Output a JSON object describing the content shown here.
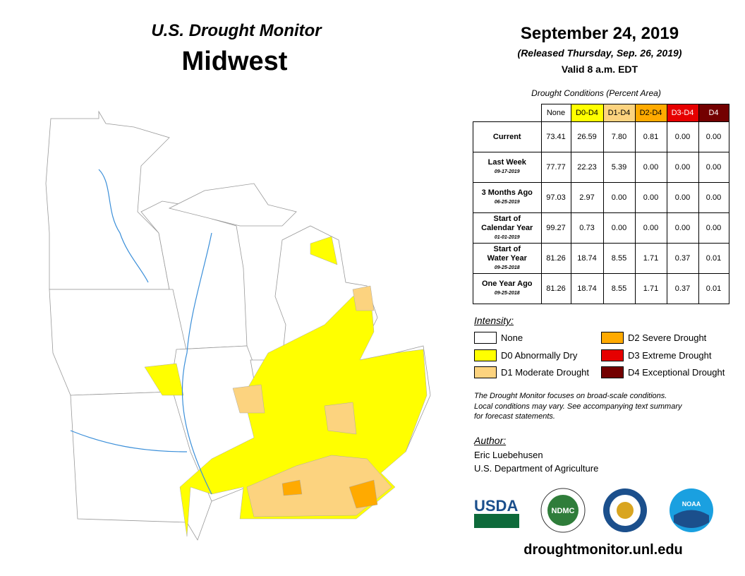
{
  "header": {
    "title": "U.S. Drought Monitor",
    "region": "Midwest",
    "date": "September 24, 2019",
    "released": "(Released Thursday, Sep. 26, 2019)",
    "valid": "Valid 8 a.m. EDT"
  },
  "table": {
    "caption": "Drought Conditions (Percent Area)",
    "columns": [
      {
        "label": "None",
        "color": "#ffffff",
        "text": "#000000"
      },
      {
        "label": "D0-D4",
        "color": "#ffff00",
        "text": "#000000"
      },
      {
        "label": "D1-D4",
        "color": "#fcd37f",
        "text": "#000000"
      },
      {
        "label": "D2-D4",
        "color": "#ffaa00",
        "text": "#000000"
      },
      {
        "label": "D3-D4",
        "color": "#e60000",
        "text": "#ffffff"
      },
      {
        "label": "D4",
        "color": "#730000",
        "text": "#ffffff"
      }
    ],
    "rows": [
      {
        "label": [
          "Current"
        ],
        "values": [
          "73.41",
          "26.59",
          "7.80",
          "0.81",
          "0.00",
          "0.00"
        ]
      },
      {
        "label": [
          "Last Week"
        ],
        "date": "09-17-2019",
        "values": [
          "77.77",
          "22.23",
          "5.39",
          "0.00",
          "0.00",
          "0.00"
        ]
      },
      {
        "label": [
          "3 Months Ago"
        ],
        "date": "06-25-2019",
        "values": [
          "97.03",
          "2.97",
          "0.00",
          "0.00",
          "0.00",
          "0.00"
        ]
      },
      {
        "label": [
          "Start of",
          "Calendar Year"
        ],
        "date": "01-01-2019",
        "values": [
          "99.27",
          "0.73",
          "0.00",
          "0.00",
          "0.00",
          "0.00"
        ]
      },
      {
        "label": [
          "Start of",
          "Water Year"
        ],
        "date": "09-25-2018",
        "values": [
          "81.26",
          "18.74",
          "8.55",
          "1.71",
          "0.37",
          "0.01"
        ]
      },
      {
        "label": [
          "One Year Ago"
        ],
        "date": "09-25-2018",
        "values": [
          "81.26",
          "18.74",
          "8.55",
          "1.71",
          "0.37",
          "0.01"
        ]
      }
    ]
  },
  "legend": {
    "title": "Intensity:",
    "items": [
      {
        "label": "None",
        "color": "#ffffff"
      },
      {
        "label": "D0 Abnormally Dry",
        "color": "#ffff00"
      },
      {
        "label": "D1 Moderate Drought",
        "color": "#fcd37f"
      },
      {
        "label": "D2 Severe Drought",
        "color": "#ffaa00"
      },
      {
        "label": "D3 Extreme Drought",
        "color": "#e60000"
      },
      {
        "label": "D4 Exceptional Drought",
        "color": "#730000"
      }
    ]
  },
  "note": [
    "The Drought Monitor focuses on broad-scale conditions.",
    "Local conditions may vary. See accompanying text summary",
    "for forecast statements."
  ],
  "author": {
    "title": "Author:",
    "lines": [
      "Eric Luebehusen",
      "U.S. Department of Agriculture"
    ]
  },
  "logos": [
    "USDA",
    "NDMC",
    "NOAA"
  ],
  "url": "droughtmonitor.unl.edu"
}
